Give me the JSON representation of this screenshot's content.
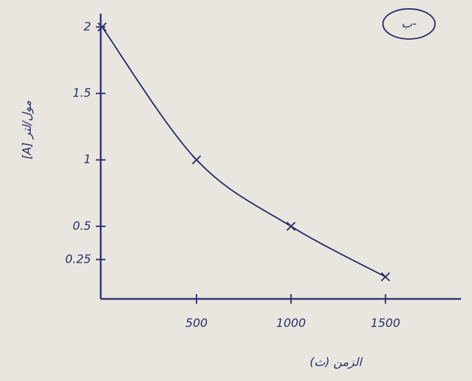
{
  "chart_data": {
    "type": "line",
    "corner_label": "ب-",
    "x_label": "الزمن (ث)",
    "y_label": "[A] مول/لتر",
    "x": [
      0,
      500,
      1000,
      1500
    ],
    "series": [
      {
        "color": "#2b2f6b",
        "values": [
          2,
          1,
          0.5,
          0.12
        ]
      }
    ],
    "xlim": [
      0,
      1900
    ],
    "ylim": [
      0,
      2.1
    ],
    "xticks": [
      500,
      1000,
      1500
    ],
    "yticks": [
      0.25,
      0.5,
      1,
      1.5,
      2
    ],
    "grid": false
  }
}
